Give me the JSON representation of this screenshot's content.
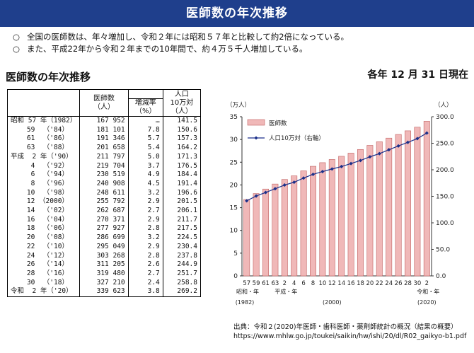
{
  "header": {
    "title": "医師数の年次推移"
  },
  "bullets": [
    "全国の医師数は、年々増加し、令和２年には昭和５７年と比較して約2倍になっている。",
    "また、平成22年から令和２年までの10年間で、約４万５千人増加している。"
  ],
  "bullet_mark": "○",
  "section_title": "医師数の年次推移",
  "date_note": "各年 12 月 31 日現在",
  "table": {
    "headers": {
      "doctors": "医師数\n（人）",
      "rate": "増減率\n（%）",
      "per": "人口\n10万対\n（人）"
    },
    "rows": [
      {
        "era": "昭和 57 年（1982）",
        "doctors": "167 952",
        "rate": "…",
        "per": "141.5"
      },
      {
        "era": "    59  （'84）",
        "doctors": "181 101",
        "rate": "7.8",
        "per": "150.6"
      },
      {
        "era": "    61  （'86）",
        "doctors": "191 346",
        "rate": "5.7",
        "per": "157.3"
      },
      {
        "era": "    63  （'88）",
        "doctors": "201 658",
        "rate": "5.4",
        "per": "164.2"
      },
      {
        "era": "平成  2 年（'90）",
        "doctors": "211 797",
        "rate": "5.0",
        "per": "171.3"
      },
      {
        "era": "     4  （'92）",
        "doctors": "219 704",
        "rate": "3.7",
        "per": "176.5"
      },
      {
        "era": "     6  （'94）",
        "doctors": "230 519",
        "rate": "4.9",
        "per": "184.4"
      },
      {
        "era": "     8  （'96）",
        "doctors": "240 908",
        "rate": "4.5",
        "per": "191.4"
      },
      {
        "era": "    10  （'98）",
        "doctors": "248 611",
        "rate": "3.2",
        "per": "196.6"
      },
      {
        "era": "    12 （2000）",
        "doctors": "255 792",
        "rate": "2.9",
        "per": "201.5"
      },
      {
        "era": "    14  （'02）",
        "doctors": "262 687",
        "rate": "2.7",
        "per": "206.1"
      },
      {
        "era": "    16  （'04）",
        "doctors": "270 371",
        "rate": "2.9",
        "per": "211.7"
      },
      {
        "era": "    18  （'06）",
        "doctors": "277 927",
        "rate": "2.8",
        "per": "217.5"
      },
      {
        "era": "    20  （'08）",
        "doctors": "286 699",
        "rate": "3.2",
        "per": "224.5"
      },
      {
        "era": "    22  （'10）",
        "doctors": "295 049",
        "rate": "2.9",
        "per": "230.4"
      },
      {
        "era": "    24  （'12）",
        "doctors": "303 268",
        "rate": "2.8",
        "per": "237.8"
      },
      {
        "era": "    26  （'14）",
        "doctors": "311 205",
        "rate": "2.6",
        "per": "244.9"
      },
      {
        "era": "    28  （'16）",
        "doctors": "319 480",
        "rate": "2.7",
        "per": "251.7"
      },
      {
        "era": "    30  （'18）",
        "doctors": "327 210",
        "rate": "2.4",
        "per": "258.8"
      },
      {
        "era": "令和  2 年（'20）",
        "doctors": "339 623",
        "rate": "3.8",
        "per": "269.2"
      }
    ]
  },
  "chart_data": {
    "type": "bar",
    "categories": [
      "57",
      "59",
      "61",
      "63",
      "2",
      "4",
      "6",
      "8",
      "10",
      "12",
      "14",
      "16",
      "18",
      "20",
      "22",
      "24",
      "26",
      "28",
      "30",
      "2"
    ],
    "series": [
      {
        "name": "医師数",
        "type": "bar",
        "axis": "left",
        "color": "#f0b8b8",
        "edge": "#c06060",
        "values": [
          16.8,
          18.1,
          19.1,
          20.2,
          21.2,
          22.0,
          23.1,
          24.1,
          24.9,
          25.6,
          26.3,
          27.0,
          27.8,
          28.7,
          29.5,
          30.3,
          31.1,
          31.9,
          32.7,
          34.0
        ]
      },
      {
        "name": "人口10万対（右軸）",
        "type": "line",
        "axis": "right",
        "color": "#1a2f8a",
        "values": [
          141.5,
          150.6,
          157.3,
          164.2,
          171.3,
          176.5,
          184.4,
          191.4,
          196.6,
          201.5,
          206.1,
          211.7,
          217.5,
          224.5,
          230.4,
          237.8,
          244.9,
          251.7,
          258.8,
          269.2
        ]
      }
    ],
    "y_left": {
      "unit": "（万人）",
      "ylim": [
        0,
        35
      ],
      "ticks": [
        "0",
        "5",
        "10",
        "15",
        "20",
        "25",
        "30",
        "35"
      ]
    },
    "y_right": {
      "unit": "（人）",
      "ylim": [
        0,
        300
      ],
      "ticks": [
        "0.0",
        "50.0",
        "100.0",
        "150.0",
        "200.0",
        "250.0",
        "300.0"
      ]
    },
    "era_labels": [
      "昭和・年",
      "平成・年",
      "令和・年"
    ],
    "year_labels": [
      "(1982)",
      "(2000)",
      "(2020)"
    ],
    "legend_position": "top-left"
  },
  "source": {
    "line1": "出典：令和２(2020)年医師・歯科医師・薬剤師統計の概況（結果の概要）",
    "line2": "https://www.mhlw.go.jp/toukei/saikin/hw/ishi/20/dl/R02_gaikyo-b1.pdf"
  }
}
